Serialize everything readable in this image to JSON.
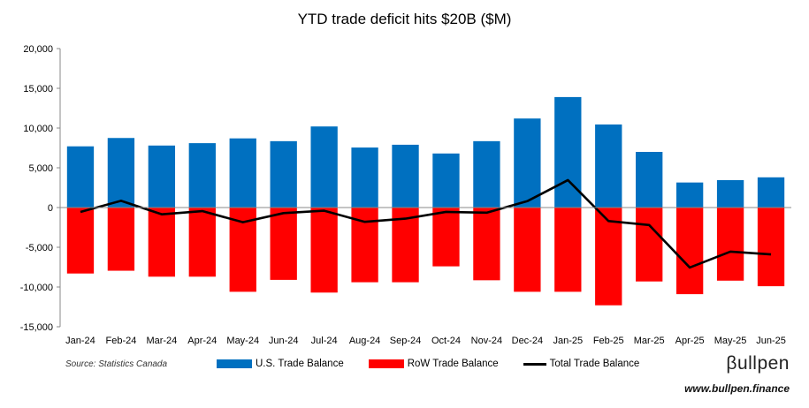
{
  "chart_data": {
    "type": "bar",
    "title": "YTD trade deficit hits $20B ($M)",
    "categories": [
      "Jan-24",
      "Feb-24",
      "Mar-24",
      "Apr-24",
      "May-24",
      "Jun-24",
      "Jul-24",
      "Aug-24",
      "Sep-24",
      "Oct-24",
      "Nov-24",
      "Dec-24",
      "Jan-25",
      "Feb-25",
      "Mar-25",
      "Apr-25",
      "May-25",
      "Jun-25"
    ],
    "series": [
      {
        "name": "U.S. Trade Balance",
        "kind": "bar",
        "color": "#0070C0",
        "values": [
          7700,
          8750,
          7800,
          8100,
          8700,
          8350,
          10200,
          7550,
          7900,
          6800,
          8350,
          11200,
          13900,
          10450,
          7000,
          3150,
          3450,
          3800
        ]
      },
      {
        "name": "RoW Trade Balance",
        "kind": "bar",
        "color": "#FF0000",
        "values": [
          -8300,
          -7950,
          -8700,
          -8700,
          -10600,
          -9100,
          -10700,
          -9400,
          -9400,
          -7400,
          -9150,
          -10600,
          -10600,
          -12300,
          -9300,
          -10900,
          -9200,
          -9900
        ]
      },
      {
        "name": "Total Trade Balance",
        "kind": "line",
        "color": "#000000",
        "values": [
          -550,
          850,
          -850,
          -450,
          -1850,
          -700,
          -400,
          -1800,
          -1400,
          -550,
          -650,
          800,
          3450,
          -1700,
          -2200,
          -7550,
          -5550,
          -5900
        ]
      }
    ],
    "ylim": [
      -15000,
      20000
    ],
    "yticks": [
      "20,000",
      "15,000",
      "10,000",
      "5,000",
      "0",
      "-5,000",
      "-10,000",
      "-15,000"
    ],
    "ytick_values": [
      20000,
      15000,
      10000,
      5000,
      0,
      -5000,
      -10000,
      -15000
    ],
    "grid": false,
    "legend_position": "bottom"
  },
  "footer": {
    "source": "Source: Statistics Canada",
    "logo": "βullpen",
    "website": "www.bullpen.finance"
  },
  "legend": {
    "us_label": "U.S. Trade Balance",
    "row_label": "RoW Trade Balance",
    "total_label": "Total Trade Balance",
    "us_color": "#0070C0",
    "row_color": "#FF0000",
    "total_color": "#000000"
  }
}
